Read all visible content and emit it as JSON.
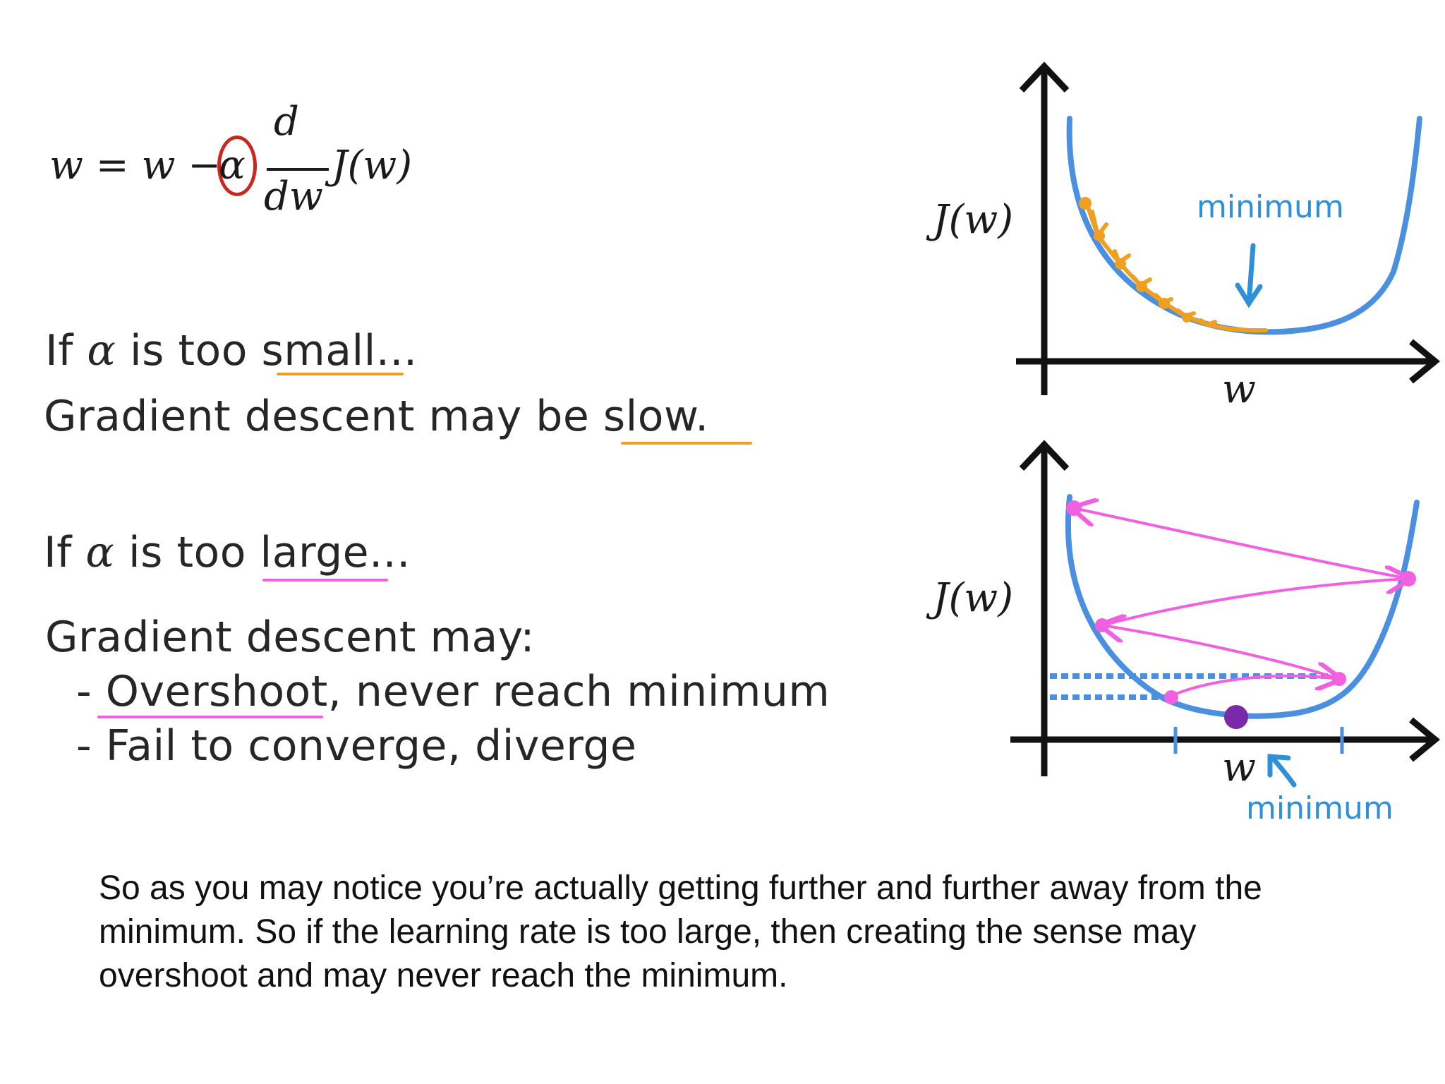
{
  "formula": {
    "lhs": "w = w −",
    "alpha": "α",
    "numerator": "d",
    "denominator": "dw",
    "func": "J(w)"
  },
  "small_case": {
    "prefix": "If",
    "symbol": "α",
    "suffix": "is too small...",
    "result": "Gradient descent may be slow."
  },
  "large_case": {
    "prefix": "If",
    "symbol": "α",
    "suffix": "is too large...",
    "intro": "Gradient descent may:",
    "bullets": [
      "- Overshoot, never reach minimum",
      "- Fail to converge, diverge"
    ]
  },
  "top_plot": {
    "y_label": "J(w)",
    "x_label": "w",
    "min_label": "minimum"
  },
  "bottom_plot": {
    "y_label": "J(w)",
    "x_label": "w",
    "min_label": "minimum"
  },
  "caption": {
    "lines": [
      "So as you may notice you’re actually getting further and further away from the",
      "minimum. So if the learning rate is too large, then creating the sense may",
      "overshoot and may never reach the minimum."
    ]
  },
  "colors": {
    "curve": "#4a8fe0",
    "small_steps": "#f0a020",
    "large_steps": "#f060e0",
    "alpha_circle": "#c8281e",
    "minimum_label": "#2f8fd8",
    "minimum_point": "#7a2aa8"
  }
}
